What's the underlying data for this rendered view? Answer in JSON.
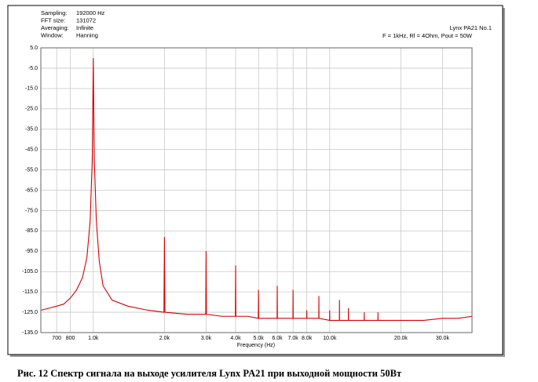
{
  "chart_data": {
    "type": "line",
    "info": [
      {
        "label": "Sampling:",
        "value": "192000 Hz"
      },
      {
        "label": "FFT size:",
        "value": "131072"
      },
      {
        "label": "Averaging:",
        "value": "Infinite"
      },
      {
        "label": "Window:",
        "value": "Hanning"
      }
    ],
    "annotations": [
      "Lynx PA21 No.1",
      "F = 1kHz, Rl = 4Ohm, Pout = 50W"
    ],
    "xlabel": "Frequency (Hz)",
    "caption": "Рис. 12   Спектр сигнала на выходе усилителя Lynx PA21 при выходной мощности 50Вт",
    "xscale": "log",
    "grid": true,
    "color": "#d40000",
    "xlim": [
      600,
      40000
    ],
    "ylim": [
      -135,
      5
    ],
    "xticks": [
      700,
      800,
      {
        "value": 1000,
        "label": "1.0k"
      },
      {
        "value": 2000,
        "label": "2.0k"
      },
      {
        "value": 3000,
        "label": "3.0k"
      },
      {
        "value": 4000,
        "label": "4.0k"
      },
      {
        "value": 5000,
        "label": "5.0k"
      },
      {
        "value": 6000,
        "label": "6.0k"
      },
      {
        "value": 7000,
        "label": "7.0k"
      },
      {
        "value": 8000,
        "label": "8.0k"
      },
      {
        "value": 10000,
        "label": "10.0k"
      },
      {
        "value": 20000,
        "label": "20.0k"
      },
      {
        "value": 30000,
        "label": "30.0k"
      }
    ],
    "yticks": [
      {
        "value": 5,
        "label": "5.0"
      },
      {
        "value": -5,
        "label": "-5.0"
      },
      {
        "value": -15,
        "label": "-15.0"
      },
      {
        "value": -25,
        "label": "-25.0"
      },
      {
        "value": -35,
        "label": "-35.0"
      },
      {
        "value": -45,
        "label": "-45.0"
      },
      {
        "value": -55,
        "label": "-55.0"
      },
      {
        "value": -65,
        "label": "-65.0"
      },
      {
        "value": -75,
        "label": "-75.0"
      },
      {
        "value": -85,
        "label": "-85.0"
      },
      {
        "value": -95,
        "label": "-95.0"
      },
      {
        "value": -105,
        "label": "-105.0"
      },
      {
        "value": -115,
        "label": "-115.0"
      },
      {
        "value": -125,
        "label": "-125.0"
      },
      {
        "value": -135,
        "label": "-135.0"
      }
    ],
    "x": [
      600,
      650,
      700,
      750,
      800,
      850,
      900,
      940,
      970,
      990,
      1000,
      1010,
      1030,
      1060,
      1100,
      1200,
      1400,
      1700,
      1990,
      2000,
      2010,
      2500,
      2990,
      3000,
      3010,
      3500,
      3990,
      4000,
      4010,
      4500,
      4990,
      5000,
      5010,
      5990,
      6000,
      6010,
      6990,
      7000,
      7010,
      7990,
      8000,
      8010,
      8990,
      9000,
      9010,
      9990,
      10000,
      10010,
      10990,
      11000,
      11010,
      11990,
      12000,
      12010,
      13990,
      14000,
      14010,
      15990,
      16000,
      16010,
      20000,
      25000,
      30000,
      35000,
      40000
    ],
    "values": [
      -124,
      -123,
      -122,
      -121,
      -118,
      -114,
      -108,
      -98,
      -80,
      -50,
      0,
      -50,
      -80,
      -100,
      -112,
      -119,
      -122,
      -124,
      -125,
      -88,
      -125,
      -126,
      -126,
      -95,
      -126,
      -127,
      -127,
      -102,
      -127,
      -127,
      -128,
      -114,
      -128,
      -128,
      -112,
      -128,
      -128,
      -114,
      -128,
      -128,
      -124,
      -128,
      -128,
      -117,
      -128,
      -129,
      -124,
      -129,
      -129,
      -119,
      -129,
      -129,
      -123,
      -129,
      -129,
      -125,
      -129,
      -129,
      -125,
      -129,
      -129,
      -129,
      -128,
      -128,
      -127
    ]
  }
}
